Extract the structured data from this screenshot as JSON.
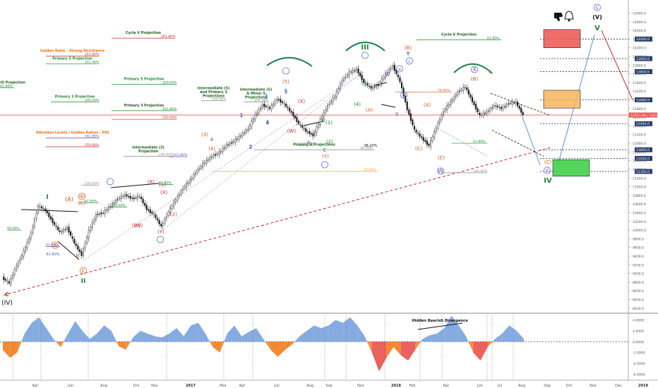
{
  "chart_data": [
    {
      "type": "line",
      "title": "",
      "xlabel": "",
      "ylabel": "",
      "time_labels": [
        "Apr",
        "Jun",
        "Aug",
        "Oct",
        "Nov",
        "2017",
        "Mar",
        "Apr",
        "Jun",
        "Aug",
        "Sep",
        "Nov",
        "2018",
        "Feb",
        "Apr",
        "Jun",
        "Jul",
        "Aug",
        "Sep",
        "Oct",
        "Nov",
        "Dec",
        "2019"
      ],
      "y_ticks": [
        15000,
        14800,
        14600,
        14400,
        14200,
        14000,
        13800,
        13600,
        13400,
        13200,
        13000,
        12800,
        12600,
        12400,
        12200,
        12000,
        11800,
        11600,
        11400,
        11200,
        11000,
        10800,
        10600,
        10400,
        10200,
        10000,
        9800,
        9600,
        9400,
        9200,
        9000,
        8800,
        8600,
        8400,
        8200
      ],
      "ylim": [
        8100,
        15300
      ],
      "series": [
        {
          "values": [
            8900,
            8780,
            9180,
            9500,
            9920,
            10560,
            10450,
            10180,
            9950,
            10050,
            9700,
            9420,
            9980,
            10350,
            10400,
            10560,
            10720,
            10810,
            10720,
            10780,
            10480,
            10350,
            10080,
            10420,
            10700,
            10960,
            11150,
            11380,
            11560,
            11700,
            11780,
            11950,
            12040,
            12180,
            12330,
            12650,
            12880,
            12800,
            13020,
            12900,
            12700,
            12450,
            12280,
            12180,
            12540,
            12870,
            13080,
            13450,
            13630,
            13700,
            13400,
            13270,
            13340,
            13600,
            13780,
            13420,
            12780,
            12300,
            12120,
            11940,
            12360,
            12740,
            12950,
            13180,
            13300,
            12960,
            12640,
            12720,
            12870,
            12800,
            12920,
            12940,
            12650
          ]
        }
      ],
      "price_lines": [
        {
          "value": 14400,
          "label": "14400.0"
        },
        {
          "value": 13950,
          "label": "13950.0"
        },
        {
          "value": 13650,
          "label": "13650.0"
        },
        {
          "value": 13000,
          "label": "13000.0"
        },
        {
          "value": 12650,
          "label": "12653.90 / 12619.0"
        },
        {
          "value": 12450,
          "label": "12450.0"
        },
        {
          "value": 11850,
          "label": "11850.0"
        },
        {
          "value": 11650,
          "label": "11650.0"
        },
        {
          "value": 11350,
          "label": "11350.0"
        }
      ],
      "levels": [
        {
          "name": "Cycle V Projection",
          "pct": "261.80%",
          "value": 14420
        },
        {
          "name": "Golden Ratio - Strong Resistance",
          "pct": "261.80%",
          "value": 14010
        },
        {
          "name": "Primary 5 Projection",
          "pct": "241.40%",
          "value": 13830
        },
        {
          "name": "Primary 5 Projection",
          "pct": "200.00%",
          "value": 13360
        },
        {
          "name": "Cycle III Projection",
          "pct": "61.80%",
          "value": 13280
        },
        {
          "name": "Primary 3 Projection",
          "pct": "200.00%",
          "value": 12950
        },
        {
          "name": "Primary 3 Projection",
          "pct": "161.80%",
          "value": 12750
        },
        {
          "name": "",
          "pct": "150.00%",
          "value": 12550
        },
        {
          "name": "Vibration Levels / Golden Ration / PHI",
          "pct": "161.80%",
          "value": 12120
        },
        {
          "name": "",
          "pct": "150.00%",
          "value": 11920
        },
        {
          "name": "Intermediate (3) Projection",
          "pct": "100.00%",
          "value": 11700
        },
        {
          "name": "",
          "pct": "161.80%",
          "value": 11690
        },
        {
          "name": "",
          "pct": "100.00%",
          "value": 11030
        },
        {
          "name": "",
          "pct": "61.80%",
          "value": 11050
        },
        {
          "name": "",
          "pct": "61.80%",
          "value": 10630
        },
        {
          "name": "",
          "pct": "50.00%",
          "value": 10530
        },
        {
          "name": "",
          "pct": "50.00%",
          "value": 10000
        },
        {
          "name": "",
          "pct": "61.80%",
          "value": 9620
        },
        {
          "name": "Intermediate (5) and Primary 3 Projections",
          "pct": "100.00%",
          "value": 12980
        },
        {
          "name": "Intermediate (5) & Minor 5 Projections",
          "pct": "100.00%",
          "value": 12950
        },
        {
          "name": "Primary 4 Projections",
          "pct": "38.20%",
          "value": 11850
        },
        {
          "name": "",
          "pct": "50.00%",
          "value": 11350
        },
        {
          "name": "",
          "pct": "100.00%",
          "value": 11950
        },
        {
          "name": "Cycle V Projection",
          "pct": "61.80%",
          "value": 14380
        },
        {
          "name": "",
          "pct": "78.60%",
          "value": 13180
        },
        {
          "name": "",
          "pct": "61.80%",
          "value": 12000
        },
        {
          "name": "",
          "pct": "100.00%",
          "value": 11320
        }
      ],
      "wave_labels": [
        "c",
        "(IV)",
        "I",
        "II",
        "(A)",
        "(B)",
        "(C)",
        "A",
        "B",
        "C",
        "61.80%",
        "1",
        "(X)",
        "(Y)",
        "(W)",
        "(1)",
        "(2)",
        "(3)",
        "(4)",
        "(5)",
        "2",
        "3",
        "4",
        "5",
        "(W)",
        "(X)",
        "(Y)",
        "(1)",
        "(2)",
        "A",
        "B",
        "C",
        "III",
        "(4)",
        "(5)",
        "(A)",
        "(B)",
        "(C)",
        "W",
        "X",
        "Y",
        "a",
        "b",
        "c",
        "X",
        "Y",
        "W",
        "(A)",
        "(B)",
        "(C)",
        "IV",
        "(C)",
        "Y",
        "c",
        "(V)",
        "V",
        "a",
        "38.20%",
        "4",
        "(X)",
        "(W)",
        "4",
        "5",
        "3",
        "Y",
        "1",
        "2",
        "4"
      ],
      "annotations": [
        "Hidden Bearish Divergence"
      ],
      "icons": [
        "thumbs-down-icon",
        "bell-icon"
      ],
      "colors": {
        "up": "#26a69a",
        "down": "#ef5350",
        "price_line": "#ef5350",
        "trend_dashed": "#c62828",
        "projection_up": "#5c8fd6",
        "projection_down": "#c62828",
        "resistance_box": "#ef5350",
        "fib_box": "#f9a825",
        "support_box": "#43d04a",
        "wave_green": "#1b8a2a",
        "wave_orange": "#d4561a",
        "wave_purple": "#6a4bbd",
        "wave_blue": "#3a5fc4",
        "osc_positive": "#5c8fd6",
        "osc_negative": "#ef6c00"
      }
    },
    {
      "type": "area",
      "title": "",
      "y_ticks": [
        4,
        2,
        0,
        -2,
        -4,
        -6
      ],
      "y_tick_labels": [
        "4.0000",
        "2.0000",
        "0.0000",
        "-2.0000",
        "-4.0000",
        "-6.0000"
      ],
      "ylim": [
        -7,
        5
      ],
      "values": [
        -1.5,
        -3.0,
        -2.0,
        1.5,
        3.5,
        4.5,
        2.5,
        0.5,
        -1.0,
        1.5,
        3.8,
        2.0,
        0.5,
        1.5,
        3.0,
        2.0,
        -0.8,
        -1.5,
        0.8,
        2.0,
        1.5,
        1.0,
        0.8,
        1.5,
        2.5,
        1.0,
        3.0,
        3.5,
        1.5,
        -1.0,
        -2.0,
        1.5,
        3.0,
        1.0,
        1.8,
        2.5,
        0.5,
        -1.5,
        -2.8,
        -1.5,
        -0.5,
        1.0,
        2.0,
        3.0,
        2.5,
        3.0,
        4.0,
        3.5,
        4.5,
        3.0,
        1.0,
        -2.0,
        -5.5,
        -3.0,
        -1.0,
        -2.5,
        -3.5,
        -1.5,
        0.5,
        1.2,
        1.5,
        2.5,
        4.8,
        3.0,
        1.0,
        -2.0,
        -3.5,
        -1.0,
        0.5,
        1.5,
        3.0,
        2.0,
        0.5
      ]
    }
  ]
}
